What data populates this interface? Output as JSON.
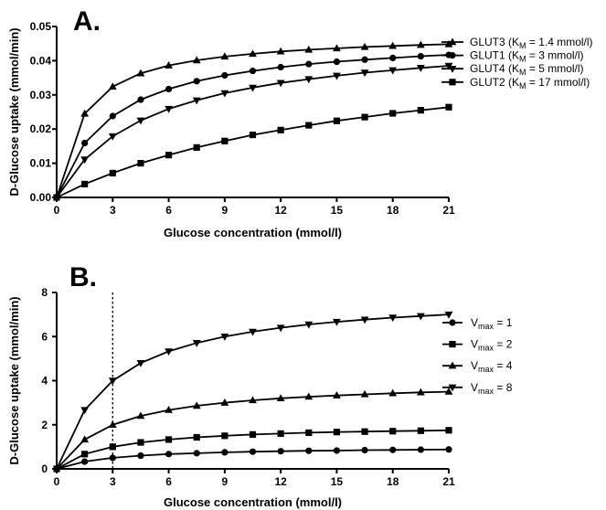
{
  "chart_data": [
    {
      "type": "line",
      "panel_label": "A.",
      "xlabel": "Glucose concentration (mmol/l)",
      "ylabel": "D-Glucose uptake (mmol/min)",
      "xlim": [
        0,
        21
      ],
      "ylim": [
        0,
        0.05
      ],
      "xticks": [
        "0",
        "3",
        "6",
        "9",
        "12",
        "15",
        "18",
        "21"
      ],
      "yticks": [
        "0.00",
        "0.01",
        "0.02",
        "0.03",
        "0.04",
        "0.05"
      ],
      "grid": false,
      "legend_position": "right",
      "x": [
        0,
        1.5,
        3,
        4.5,
        6,
        7.5,
        9,
        10.5,
        12,
        13.5,
        15,
        16.5,
        18,
        19.5,
        21
      ],
      "series": [
        {
          "name": "GLUT3",
          "legend_sub": "M",
          "legend_value": " = 1.4 mmol/l)",
          "marker": "triangle-up",
          "values": [
            0,
            0.0245,
            0.0324,
            0.0363,
            0.0386,
            0.0401,
            0.0412,
            0.042,
            0.0427,
            0.0432,
            0.0436,
            0.044,
            0.0443,
            0.0446,
            0.0448
          ]
        },
        {
          "name": "GLUT1",
          "legend_sub": "M",
          "legend_value": " = 3 mmol/l)",
          "marker": "circle",
          "values": [
            0,
            0.0159,
            0.0238,
            0.0286,
            0.0317,
            0.034,
            0.0357,
            0.037,
            0.0381,
            0.039,
            0.0397,
            0.0403,
            0.0408,
            0.0413,
            0.0417
          ]
        },
        {
          "name": "GLUT4",
          "legend_sub": "M",
          "legend_value": " = 5 mmol/l)",
          "marker": "triangle-down",
          "values": [
            0,
            0.0111,
            0.0179,
            0.0225,
            0.0259,
            0.0284,
            0.0305,
            0.0321,
            0.0335,
            0.0346,
            0.0356,
            0.0365,
            0.0372,
            0.0379,
            0.0385
          ]
        },
        {
          "name": "GLUT2",
          "legend_sub": "M",
          "legend_value": " = 17 mmol/l)",
          "marker": "square",
          "values": [
            0,
            0.0039,
            0.0071,
            0.01,
            0.0124,
            0.0146,
            0.0165,
            0.0183,
            0.0197,
            0.0211,
            0.0224,
            0.0235,
            0.0246,
            0.0255,
            0.0264
          ]
        }
      ]
    },
    {
      "type": "line",
      "panel_label": "B.",
      "xlabel": "Glucose concentration (mmol/l)",
      "ylabel": "D-Glucose uptake (mmol/min)",
      "xlim": [
        0,
        21
      ],
      "ylim": [
        0,
        8
      ],
      "xticks": [
        "0",
        "3",
        "6",
        "9",
        "12",
        "15",
        "18",
        "21"
      ],
      "yticks": [
        "0",
        "2",
        "4",
        "6",
        "8"
      ],
      "grid": false,
      "legend_position": "right",
      "reference_line_x": 3,
      "x": [
        0,
        1.5,
        3,
        4.5,
        6,
        7.5,
        9,
        10.5,
        12,
        13.5,
        15,
        16.5,
        18,
        19.5,
        21
      ],
      "series": [
        {
          "name": "V",
          "legend_sub": "max",
          "legend_value": " = 1",
          "marker": "circle",
          "values": [
            0,
            0.33,
            0.5,
            0.6,
            0.67,
            0.71,
            0.75,
            0.78,
            0.8,
            0.82,
            0.83,
            0.85,
            0.86,
            0.87,
            0.88
          ]
        },
        {
          "name": "V",
          "legend_sub": "max",
          "legend_value": " = 2",
          "marker": "square",
          "values": [
            0,
            0.67,
            1.0,
            1.2,
            1.33,
            1.43,
            1.5,
            1.56,
            1.6,
            1.64,
            1.67,
            1.69,
            1.71,
            1.73,
            1.75
          ]
        },
        {
          "name": "V",
          "legend_sub": "max",
          "legend_value": " = 4",
          "marker": "triangle-up",
          "values": [
            0,
            1.33,
            2.0,
            2.4,
            2.67,
            2.86,
            3.0,
            3.11,
            3.2,
            3.27,
            3.33,
            3.38,
            3.43,
            3.47,
            3.5
          ]
        },
        {
          "name": "V",
          "legend_sub": "max",
          "legend_value": " = 8",
          "marker": "triangle-down",
          "values": [
            0,
            2.67,
            4.0,
            4.8,
            5.33,
            5.71,
            6.0,
            6.22,
            6.4,
            6.55,
            6.67,
            6.77,
            6.86,
            6.93,
            7.0
          ]
        }
      ]
    }
  ]
}
